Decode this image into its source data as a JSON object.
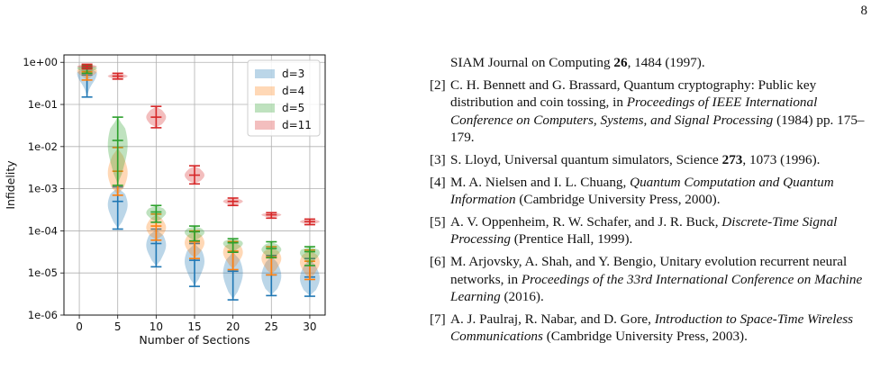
{
  "page_number": "8",
  "chart_data": {
    "type": "violin",
    "title": "",
    "xlabel": "Number of Sections",
    "ylabel": "Infidelity",
    "yscale": "log",
    "ylim": [
      1e-06,
      1.5
    ],
    "xlim": [
      -2,
      32
    ],
    "x_ticks": [
      0,
      5,
      10,
      15,
      20,
      25,
      30
    ],
    "x_tick_labels": [
      "0",
      "5",
      "10",
      "15",
      "20",
      "25",
      "30"
    ],
    "y_ticks": [
      1e-06,
      1e-05,
      0.0001,
      0.001,
      0.01,
      0.1,
      1
    ],
    "y_tick_labels": [
      "1e-06",
      "1e-05",
      "1e-04",
      "1e-03",
      "1e-02",
      "1e-01",
      "1e+00"
    ],
    "grid": true,
    "legend_position": "top-right",
    "series": [
      {
        "name": "d=3",
        "color": "#1f77b4",
        "points": [
          {
            "x": 1,
            "min": 0.15,
            "mean": 0.5,
            "median": 0.55,
            "max": 0.75
          },
          {
            "x": 5,
            "min": 0.00011,
            "mean": 0.0005,
            "median": 0.00042,
            "max": 0.0011
          },
          {
            "x": 10,
            "min": 1.4e-05,
            "mean": 5e-05,
            "median": 4.6e-05,
            "max": 0.00011
          },
          {
            "x": 15,
            "min": 4.8e-06,
            "mean": 2e-05,
            "median": 1.9e-05,
            "max": 5e-05
          },
          {
            "x": 20,
            "min": 2.3e-06,
            "mean": 1.1e-05,
            "median": 1e-05,
            "max": 3.2e-05
          },
          {
            "x": 25,
            "min": 2.9e-06,
            "mean": 9e-06,
            "median": 8.5e-06,
            "max": 2.6e-05
          },
          {
            "x": 30,
            "min": 2.8e-06,
            "mean": 8e-06,
            "median": 7.5e-06,
            "max": 2.2e-05
          }
        ]
      },
      {
        "name": "d=4",
        "color": "#ff7f0e",
        "points": [
          {
            "x": 1,
            "min": 0.38,
            "mean": 0.6,
            "median": 0.62,
            "max": 0.8
          },
          {
            "x": 5,
            "min": 0.0007,
            "mean": 0.0026,
            "median": 0.0024,
            "max": 0.0095
          },
          {
            "x": 10,
            "min": 6e-05,
            "mean": 0.00013,
            "median": 0.00012,
            "max": 0.00025
          },
          {
            "x": 15,
            "min": 2.2e-05,
            "mean": 5.5e-05,
            "median": 5.2e-05,
            "max": 0.0001
          },
          {
            "x": 20,
            "min": 1.2e-05,
            "mean": 3.3e-05,
            "median": 3.1e-05,
            "max": 5.6e-05
          },
          {
            "x": 25,
            "min": 9e-06,
            "mean": 2.4e-05,
            "median": 2.2e-05,
            "max": 4.2e-05
          },
          {
            "x": 30,
            "min": 7e-06,
            "mean": 1.9e-05,
            "median": 1.8e-05,
            "max": 3.5e-05
          }
        ]
      },
      {
        "name": "d=5",
        "color": "#2ca02c",
        "points": [
          {
            "x": 1,
            "min": 0.55,
            "mean": 0.72,
            "median": 0.73,
            "max": 0.85
          },
          {
            "x": 5,
            "min": 0.0012,
            "mean": 0.014,
            "median": 0.011,
            "max": 0.05
          },
          {
            "x": 10,
            "min": 0.00016,
            "mean": 0.00028,
            "median": 0.00027,
            "max": 0.0004
          },
          {
            "x": 15,
            "min": 5.8e-05,
            "mean": 9.5e-05,
            "median": 9.2e-05,
            "max": 0.00013
          },
          {
            "x": 20,
            "min": 3.1e-05,
            "mean": 5.2e-05,
            "median": 5e-05,
            "max": 6.5e-05
          },
          {
            "x": 25,
            "min": 2.3e-05,
            "mean": 3.8e-05,
            "median": 3.6e-05,
            "max": 5.5e-05
          },
          {
            "x": 30,
            "min": 1.5e-05,
            "mean": 3.2e-05,
            "median": 3e-05,
            "max": 4.2e-05
          }
        ]
      },
      {
        "name": "d=11",
        "color": "#d62728",
        "points": [
          {
            "x": 1,
            "min": 0.7,
            "mean": 0.8,
            "median": 0.8,
            "max": 0.9
          },
          {
            "x": 5,
            "min": 0.4,
            "mean": 0.47,
            "median": 0.47,
            "max": 0.55
          },
          {
            "x": 10,
            "min": 0.028,
            "mean": 0.05,
            "median": 0.05,
            "max": 0.09
          },
          {
            "x": 15,
            "min": 0.0013,
            "mean": 0.0021,
            "median": 0.0021,
            "max": 0.0035
          },
          {
            "x": 20,
            "min": 0.0004,
            "mean": 0.0005,
            "median": 0.0005,
            "max": 0.0006
          },
          {
            "x": 25,
            "min": 0.0002,
            "mean": 0.00024,
            "median": 0.00024,
            "max": 0.00027
          },
          {
            "x": 30,
            "min": 0.00014,
            "mean": 0.000165,
            "median": 0.000165,
            "max": 0.00019
          }
        ]
      }
    ]
  },
  "references": {
    "fragment": [
      {
        "t": "SIAM Journal on Computing ",
        "s": ""
      },
      {
        "t": "26",
        "s": "bf"
      },
      {
        "t": ", 1484 (1997).",
        "s": ""
      }
    ],
    "items": [
      {
        "num": "[2]",
        "parts": [
          {
            "t": "C. H. Bennett and G. Brassard, Quantum cryptography: Public key distribution and coin tossing, in ",
            "s": ""
          },
          {
            "t": "Proceedings of IEEE International Conference on Computers, Systems, and Signal Processing",
            "s": "it"
          },
          {
            "t": " (1984) pp. 175–179.",
            "s": ""
          }
        ]
      },
      {
        "num": "[3]",
        "parts": [
          {
            "t": "S. Lloyd, Universal quantum simulators, Science ",
            "s": ""
          },
          {
            "t": "273",
            "s": "bf"
          },
          {
            "t": ", 1073 (1996).",
            "s": ""
          }
        ]
      },
      {
        "num": "[4]",
        "parts": [
          {
            "t": "M. A. Nielsen and I. L. Chuang, ",
            "s": ""
          },
          {
            "t": "Quantum Computation and Quantum Information",
            "s": "it"
          },
          {
            "t": " (Cambridge University Press, 2000).",
            "s": ""
          }
        ]
      },
      {
        "num": "[5]",
        "parts": [
          {
            "t": "A. V. Oppenheim, R. W. Schafer, and J. R. Buck, ",
            "s": ""
          },
          {
            "t": "Discrete-Time Signal Processing",
            "s": "it"
          },
          {
            "t": " (Prentice Hall, 1999).",
            "s": ""
          }
        ]
      },
      {
        "num": "[6]",
        "parts": [
          {
            "t": "M. Arjovsky, A. Shah, and Y. Bengio, Unitary evolution recurrent neural networks, in ",
            "s": ""
          },
          {
            "t": "Proceedings of the 33rd International Conference on Machine Learning",
            "s": "it"
          },
          {
            "t": " (2016).",
            "s": ""
          }
        ]
      },
      {
        "num": "[7]",
        "parts": [
          {
            "t": "A. J. Paulraj, R. Nabar, and D. Gore, ",
            "s": ""
          },
          {
            "t": "Introduction to Space-Time Wireless Communications",
            "s": "it"
          },
          {
            "t": " (Cambridge University Press, 2003).",
            "s": ""
          }
        ]
      }
    ]
  }
}
